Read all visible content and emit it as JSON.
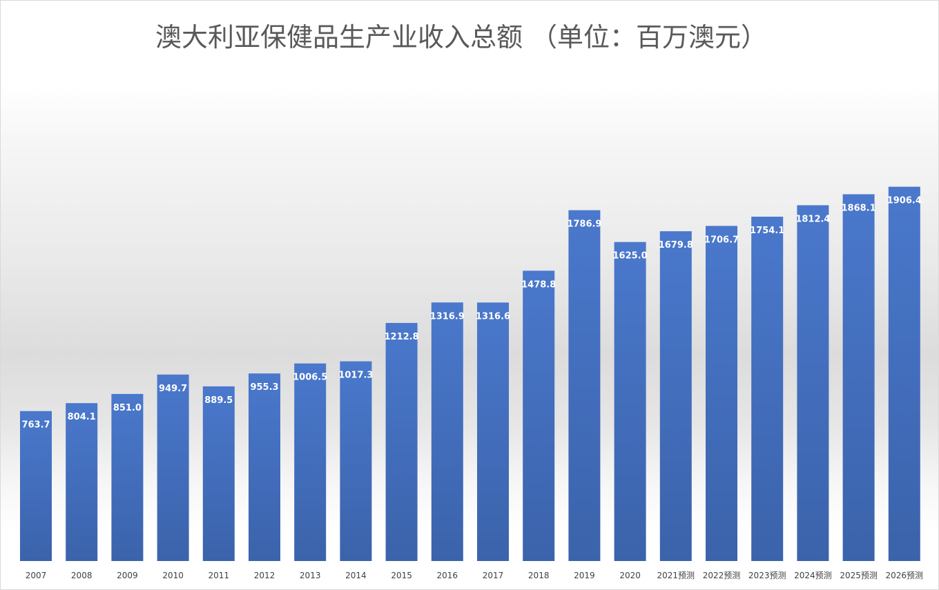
{
  "chart_data": {
    "type": "bar",
    "title": "澳大利亚保健品生产业收入总额 （单位：百万澳元）",
    "categories": [
      "2007",
      "2008",
      "2009",
      "2010",
      "2011",
      "2012",
      "2013",
      "2014",
      "2015",
      "2016",
      "2017",
      "2018",
      "2019",
      "2020",
      "2021预测",
      "2022预测",
      "2023预测",
      "2024预测",
      "2025预测",
      "2026预测"
    ],
    "values": [
      763.7,
      804.1,
      851.0,
      949.7,
      889.5,
      955.3,
      1006.5,
      1017.3,
      1212.8,
      1316.9,
      1316.6,
      1478.8,
      1786.9,
      1625.0,
      1679.8,
      1706.7,
      1754.1,
      1812.4,
      1868.1,
      1906.4
    ],
    "value_labels": [
      "763.7",
      "804.1",
      "851.0",
      "949.7",
      "889.5",
      "955.3",
      "1006.5",
      "1017.3",
      "1212.8",
      "1316.9",
      "1316.6",
      "1478.8",
      "1786.9",
      "1625.0",
      "1679.8",
      "1706.7",
      "1754.1",
      "1812.4",
      "1868.1",
      "1906.4"
    ],
    "xlabel": "",
    "ylabel": "",
    "ylim": [
      0,
      2000
    ],
    "grid": false,
    "legend": "none",
    "colors": {
      "bar": "#4472c4",
      "bar_dark": "#3a62a9",
      "label": "#ffffff",
      "title": "#595959",
      "tick": "#404040"
    }
  }
}
